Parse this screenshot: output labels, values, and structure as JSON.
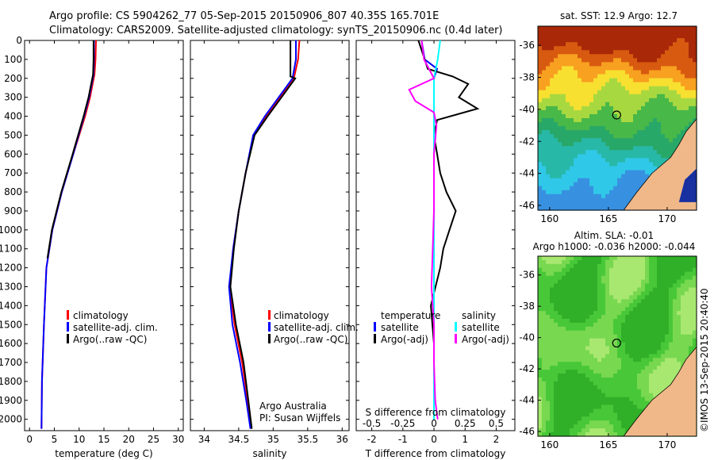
{
  "header": {
    "line1": "Argo profile: CS 5904262_77 05-Sep-2015 20150906_807 40.35S 165.701E",
    "line2": "Climatology: CARS2009. Satellite-adjusted climatology: synTS_20150906.nc (0.4d later)"
  },
  "colors": {
    "climatology": "#ff0000",
    "satellite": "#0000ff",
    "argo": "#000000",
    "sal_satellite": "#00ffff",
    "sal_argo": "#ff00ff",
    "land": "#f0b888"
  },
  "chart_data": [
    {
      "type": "line",
      "xlabel": "temperature (deg C)",
      "xlim": [
        -1,
        31
      ],
      "xticks": [
        0,
        5,
        10,
        15,
        20,
        25,
        30
      ],
      "ylim": [
        2060,
        0
      ],
      "yticks": [
        0,
        100,
        200,
        300,
        400,
        500,
        600,
        700,
        800,
        900,
        1000,
        1100,
        1200,
        1300,
        1400,
        1500,
        1600,
        1700,
        1800,
        1900,
        2000
      ],
      "legend": [
        "climatology",
        "satellite-adj. clim.",
        "Argo(..raw -QC)"
      ],
      "series": [
        {
          "name": "climatology",
          "color": "#ff0000",
          "depth": [
            0,
            100,
            180,
            300,
            400,
            500,
            600,
            800,
            1000,
            1200,
            1500,
            1800,
            2050
          ],
          "values": [
            13.4,
            13.3,
            13.1,
            12.2,
            11.2,
            10.0,
            8.8,
            6.5,
            4.6,
            3.4,
            2.9,
            2.5,
            2.4
          ]
        },
        {
          "name": "satellite-adj. clim.",
          "color": "#0000ff",
          "depth": [
            0,
            100,
            180,
            300,
            400,
            500,
            600,
            800,
            1000,
            1200,
            1500,
            1800,
            2050
          ],
          "values": [
            13.0,
            13.0,
            12.9,
            12.0,
            11.0,
            9.9,
            8.8,
            6.5,
            4.6,
            3.4,
            2.9,
            2.5,
            2.4
          ]
        },
        {
          "name": "Argo(..raw -QC)",
          "color": "#000000",
          "depth": [
            0,
            100,
            180,
            300,
            400,
            500,
            600,
            800,
            1000,
            1150
          ],
          "values": [
            12.9,
            12.9,
            12.8,
            11.9,
            10.9,
            9.8,
            8.7,
            6.4,
            4.5,
            3.6
          ]
        }
      ]
    },
    {
      "type": "line",
      "xlabel": "salinity",
      "xlim": [
        33.8,
        36.1
      ],
      "xticks": [
        34,
        34.5,
        35,
        35.5,
        36
      ],
      "ylim": [
        2060,
        0
      ],
      "legend": [
        "climatology",
        "satellite-adj. clim.",
        "Argo(..raw -QC)"
      ],
      "annotation": [
        "Argo Australia",
        "PI: Susan Wijffels"
      ],
      "series": [
        {
          "name": "climatology",
          "color": "#ff0000",
          "depth": [
            0,
            100,
            200,
            300,
            400,
            500,
            700,
            900,
            1100,
            1300,
            1500,
            1700,
            1900,
            2050
          ],
          "values": [
            35.38,
            35.36,
            35.3,
            35.1,
            34.9,
            34.72,
            34.6,
            34.5,
            34.42,
            34.37,
            34.44,
            34.55,
            34.63,
            34.68
          ]
        },
        {
          "name": "satellite-adj. clim.",
          "color": "#0000ff",
          "depth": [
            0,
            100,
            200,
            300,
            400,
            500,
            700,
            900,
            1100,
            1300,
            1500,
            1700,
            1900,
            2050
          ],
          "values": [
            35.33,
            35.33,
            35.28,
            35.08,
            34.88,
            34.71,
            34.6,
            34.5,
            34.42,
            34.36,
            34.41,
            34.52,
            34.61,
            34.67
          ]
        },
        {
          "name": "Argo(..raw -QC)",
          "color": "#000000",
          "depth": [
            0,
            100,
            190,
            200,
            300,
            400,
            500,
            700,
            900,
            1100,
            1300,
            1500,
            1700,
            1900,
            2050
          ],
          "values": [
            35.25,
            35.25,
            35.25,
            35.32,
            35.12,
            34.92,
            34.73,
            34.6,
            34.5,
            34.43,
            34.38,
            34.46,
            34.57,
            34.64,
            34.69
          ]
        }
      ]
    },
    {
      "type": "line",
      "xlabel": "T difference from climatology",
      "xlabel_top": "S difference from climatology",
      "xlim": [
        -2.5,
        2.6
      ],
      "xticks": [
        -2,
        -1,
        0,
        1,
        2
      ],
      "xticks_top": [
        -0.5,
        -0.25,
        0,
        0.25,
        0.5
      ],
      "ylim": [
        2060,
        0
      ],
      "legend_temperature": {
        "title": "temperature",
        "items": [
          "satellite",
          "Argo(-adj)"
        ]
      },
      "legend_salinity": {
        "title": "salinity",
        "items": [
          "satellite",
          "Argo(-adj)"
        ]
      },
      "series": [
        {
          "name": "temperature satellite",
          "color": "#0000ff",
          "depth": [
            0,
            100,
            150,
            200,
            300,
            500,
            800,
            1200,
            1600,
            2000
          ],
          "values": [
            -0.4,
            -0.3,
            0.1,
            0.0,
            0.0,
            0.0,
            0.0,
            0.0,
            0.0,
            0.0
          ]
        },
        {
          "name": "temperature Argo(-adj)",
          "color": "#000000",
          "depth": [
            0,
            100,
            150,
            190,
            230,
            300,
            360,
            420,
            500,
            600,
            700,
            800,
            900,
            1000,
            1100,
            1200,
            1400,
            1600,
            1800,
            2000
          ],
          "values": [
            -0.5,
            -0.3,
            -0.2,
            0.6,
            1.1,
            0.8,
            1.4,
            0.1,
            0.0,
            0.1,
            0.2,
            0.4,
            0.7,
            0.5,
            0.3,
            0.2,
            -0.1,
            0.0,
            0.0,
            0.0
          ]
        },
        {
          "name": "salinity satellite",
          "color": "#00ffff",
          "depth": [
            0,
            100,
            200,
            400,
            700,
            1000,
            1300,
            1600,
            2000
          ],
          "values": [
            0.05,
            0.03,
            0.0,
            0.0,
            0.0,
            0.0,
            0.0,
            0.0,
            0.0
          ]
        },
        {
          "name": "salinity Argo(-adj)",
          "color": "#ff00ff",
          "depth": [
            0,
            100,
            200,
            260,
            320,
            380,
            450,
            600,
            900,
            1300,
            1500,
            1700,
            1900,
            2000
          ],
          "values": [
            -0.1,
            -0.08,
            0.0,
            -0.2,
            -0.15,
            0.0,
            0.02,
            0.0,
            0.0,
            -0.02,
            0.0,
            0.0,
            0.01,
            0.03
          ]
        }
      ]
    },
    {
      "type": "heatmap",
      "title": "sat. SST: 12.9 Argo: 12.7",
      "xticks": [
        160,
        165,
        170
      ],
      "yticks": [
        -36,
        -38,
        -40,
        -42,
        -44,
        -46
      ],
      "xlim": [
        159,
        172.5
      ],
      "ylim": [
        -46.3,
        -34.8
      ],
      "argo_position": {
        "lon": 165.701,
        "lat": -40.35
      }
    },
    {
      "type": "heatmap",
      "title_lines": [
        "Altim. SLA: -0.01",
        "Argo h1000: -0.036 h2000: -0.044"
      ],
      "xticks": [
        160,
        165,
        170
      ],
      "yticks": [
        -36,
        -38,
        -40,
        -42,
        -44,
        -46
      ],
      "xlim": [
        159,
        172.5
      ],
      "ylim": [
        -46.3,
        -34.8
      ],
      "argo_position": {
        "lon": 165.701,
        "lat": -40.35
      }
    }
  ],
  "credit": "©IMOS 13-Sep-2015 20:40:40"
}
